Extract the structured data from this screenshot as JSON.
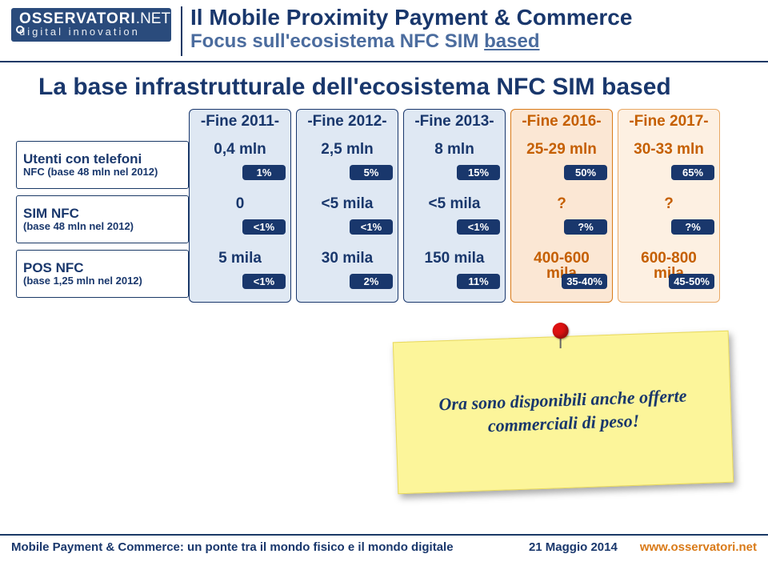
{
  "header": {
    "logo_main": "OSSERVATORI",
    "logo_dot": ".NET",
    "logo_sub": "digital innovation",
    "title_line1": "Il Mobile Proximity Payment & Commerce",
    "title_line2_a": "Focus sull'ecosistema NFC SIM ",
    "title_line2_u": "based"
  },
  "main_title": "La base infrastrutturale dell'ecosistema NFC SIM based",
  "row_labels": [
    {
      "l1": "Utenti con telefoni",
      "l2": "NFC (base 48 mln nel 2012)"
    },
    {
      "l1": "SIM NFC",
      "l2": "(base 48 mln nel 2012)"
    },
    {
      "l1": "POS NFC",
      "l2": "(base 1,25 mln nel 2012)"
    }
  ],
  "columns": [
    {
      "style": "blue",
      "header": "-Fine 2011-",
      "pct_bg": "#19376c",
      "cells": [
        {
          "value": "0,4 mln",
          "pct": "1%"
        },
        {
          "value": "0",
          "pct": "<1%"
        },
        {
          "value": "5 mila",
          "pct": "<1%"
        }
      ]
    },
    {
      "style": "blue",
      "header": "-Fine 2012-",
      "pct_bg": "#19376c",
      "cells": [
        {
          "value": "2,5 mln",
          "pct": "5%"
        },
        {
          "value": "<5 mila",
          "pct": "<1%"
        },
        {
          "value": "30 mila",
          "pct": "2%"
        }
      ]
    },
    {
      "style": "blue",
      "header": "-Fine 2013-",
      "pct_bg": "#19376c",
      "cells": [
        {
          "value": "8 mln",
          "pct": "15%"
        },
        {
          "value": "<5 mila",
          "pct": "<1%"
        },
        {
          "value": "150 mila",
          "pct": "11%"
        }
      ]
    },
    {
      "style": "orange",
      "header": "-Fine 2016-",
      "pct_bg": "#19376c",
      "cells": [
        {
          "value": "25-29 mln",
          "pct": "50%"
        },
        {
          "value": "?",
          "pct": "?%"
        },
        {
          "value": "400-600 mila",
          "pct": "35-40%"
        }
      ]
    },
    {
      "style": "orangeL",
      "header": "-Fine 2017-",
      "pct_bg": "#19376c",
      "cells": [
        {
          "value": "30-33 mln",
          "pct": "65%"
        },
        {
          "value": "?",
          "pct": "?%"
        },
        {
          "value": "600-800 mila",
          "pct": "45-50%"
        }
      ]
    }
  ],
  "note_text": "Ora sono disponibili anche offerte commerciali di peso!",
  "footer": {
    "left": "Mobile Payment & Commerce: un ponte tra il mondo fisico e il mondo digitale",
    "date": "21 Maggio 2014",
    "url": "www.osservatori.net"
  }
}
